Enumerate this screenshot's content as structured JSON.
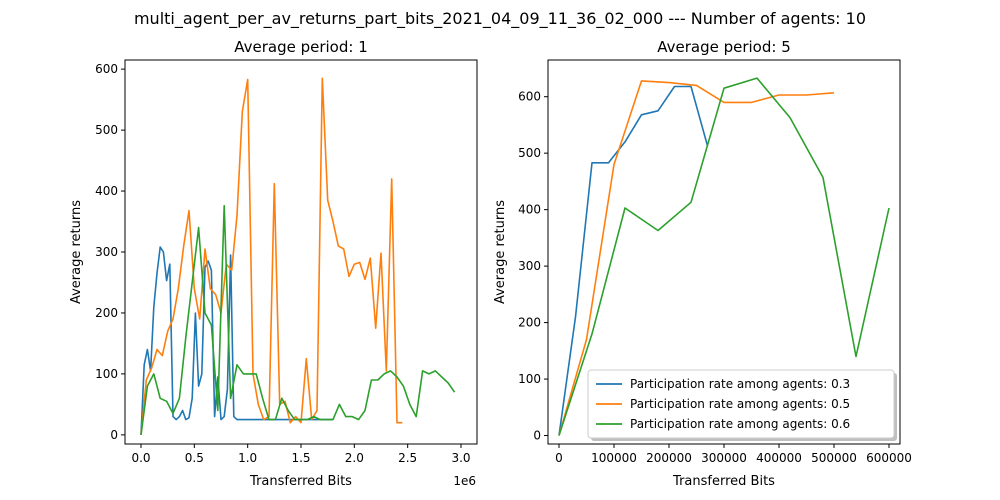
{
  "figure": {
    "suptitle": "multi_agent_per_av_returns_part_bits_2021_04_09_11_36_02_000 --- Number of agents: 10"
  },
  "colors": {
    "series": [
      "#1f77b4",
      "#ff7f0e",
      "#2ca02c"
    ]
  },
  "chart_data": [
    {
      "type": "line",
      "title": "Average period: 1",
      "xlabel": "Transferred Bits",
      "ylabel": "Average returns",
      "x_offset_text": "1e6",
      "xlim": [
        -0.15,
        3.15
      ],
      "ylim": [
        -15,
        615
      ],
      "xticks": [
        0.0,
        0.5,
        1.0,
        1.5,
        2.0,
        2.5,
        3.0
      ],
      "xtick_labels": [
        "0.0",
        "0.5",
        "1.0",
        "1.5",
        "2.0",
        "2.5",
        "3.0"
      ],
      "yticks": [
        0,
        100,
        200,
        300,
        400,
        500,
        600
      ],
      "grid": false,
      "series": [
        {
          "x": [
            0,
            0.03,
            0.06,
            0.09,
            0.12,
            0.15,
            0.18,
            0.21,
            0.24,
            0.27,
            0.3,
            0.33,
            0.36,
            0.39,
            0.42,
            0.45,
            0.48,
            0.51,
            0.54,
            0.57,
            0.6,
            0.63,
            0.66,
            0.69,
            0.72,
            0.75,
            0.78,
            0.81,
            0.84,
            0.87,
            0.9,
            0.93,
            1.0,
            1.2,
            1.4,
            1.6,
            1.8
          ],
          "y": [
            0,
            115,
            140,
            105,
            210,
            265,
            308,
            300,
            253,
            280,
            30,
            25,
            30,
            40,
            25,
            28,
            60,
            200,
            80,
            100,
            275,
            285,
            270,
            30,
            95,
            25,
            30,
            75,
            295,
            30,
            25,
            25,
            25,
            25,
            25,
            25,
            25
          ]
        },
        {
          "x": [
            0,
            0.05,
            0.1,
            0.15,
            0.2,
            0.25,
            0.3,
            0.35,
            0.4,
            0.45,
            0.5,
            0.55,
            0.6,
            0.65,
            0.7,
            0.75,
            0.8,
            0.85,
            0.9,
            0.95,
            1.0,
            1.05,
            1.1,
            1.15,
            1.2,
            1.25,
            1.3,
            1.35,
            1.4,
            1.45,
            1.5,
            1.55,
            1.6,
            1.65,
            1.7,
            1.75,
            1.8,
            1.85,
            1.9,
            1.95,
            2.0,
            2.05,
            2.1,
            2.15,
            2.2,
            2.25,
            2.3,
            2.35,
            2.4,
            2.45
          ],
          "y": [
            0,
            90,
            110,
            140,
            130,
            170,
            190,
            240,
            310,
            368,
            240,
            190,
            305,
            240,
            230,
            200,
            280,
            270,
            360,
            530,
            583,
            100,
            50,
            25,
            30,
            412,
            50,
            55,
            20,
            30,
            20,
            125,
            25,
            40,
            585,
            385,
            350,
            310,
            305,
            260,
            280,
            283,
            255,
            290,
            175,
            298,
            105,
            420,
            20,
            20
          ]
        },
        {
          "x": [
            0,
            0.06,
            0.12,
            0.18,
            0.24,
            0.3,
            0.36,
            0.42,
            0.48,
            0.54,
            0.6,
            0.66,
            0.72,
            0.78,
            0.84,
            0.9,
            0.96,
            1.02,
            1.08,
            1.14,
            1.2,
            1.26,
            1.32,
            1.38,
            1.44,
            1.5,
            1.56,
            1.62,
            1.68,
            1.74,
            1.8,
            1.86,
            1.92,
            1.98,
            2.04,
            2.1,
            2.16,
            2.22,
            2.28,
            2.34,
            2.4,
            2.46,
            2.52,
            2.58,
            2.64,
            2.7,
            2.76,
            2.82,
            2.88,
            2.94
          ],
          "y": [
            0,
            80,
            100,
            60,
            55,
            35,
            60,
            160,
            250,
            340,
            200,
            180,
            40,
            376,
            60,
            115,
            100,
            100,
            100,
            60,
            25,
            25,
            60,
            40,
            25,
            25,
            25,
            30,
            25,
            25,
            25,
            50,
            30,
            30,
            25,
            40,
            90,
            90,
            100,
            105,
            95,
            80,
            50,
            30,
            105,
            100,
            105,
            95,
            85,
            70
          ]
        }
      ]
    },
    {
      "type": "line",
      "title": "Average period: 5",
      "xlabel": "Transferred Bits",
      "ylabel": "Average returns",
      "xlim": [
        -20000,
        620000
      ],
      "ylim": [
        -15,
        665
      ],
      "xticks": [
        0,
        100000,
        200000,
        300000,
        400000,
        500000,
        600000
      ],
      "xtick_labels": [
        "0",
        "100000",
        "200000",
        "300000",
        "400000",
        "500000",
        "600000"
      ],
      "yticks": [
        0,
        100,
        200,
        300,
        400,
        500,
        600
      ],
      "grid": false,
      "legend": {
        "position": "bottom-right",
        "entries": [
          "Participation rate among agents: 0.3",
          "Participation rate among agents: 0.5",
          "Participation rate among agents: 0.6"
        ]
      },
      "series": [
        {
          "name": "Participation rate among agents: 0.3",
          "x": [
            0,
            30000,
            60000,
            90000,
            120000,
            150000,
            180000,
            210000,
            240000,
            270000
          ],
          "y": [
            0,
            210,
            483,
            483,
            520,
            568,
            575,
            618,
            618,
            513
          ]
        },
        {
          "name": "Participation rate among agents: 0.5",
          "x": [
            0,
            50000,
            100000,
            150000,
            200000,
            250000,
            300000,
            350000,
            400000,
            450000,
            500000
          ],
          "y": [
            0,
            170,
            480,
            628,
            625,
            620,
            590,
            590,
            603,
            603,
            607
          ]
        },
        {
          "name": "Participation rate among agents: 0.6",
          "x": [
            0,
            60000,
            120000,
            180000,
            240000,
            300000,
            360000,
            420000,
            480000,
            540000,
            600000
          ],
          "y": [
            0,
            180,
            403,
            363,
            413,
            615,
            633,
            563,
            457,
            140,
            403
          ]
        }
      ]
    }
  ]
}
